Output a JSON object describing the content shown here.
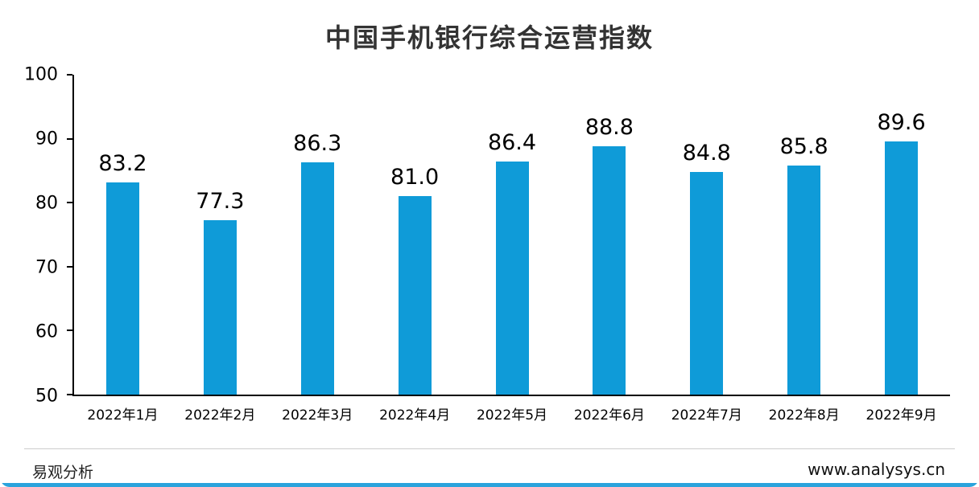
{
  "chart_data": {
    "type": "bar",
    "title": "中国手机银行综合运营指数",
    "categories": [
      "2022年1月",
      "2022年2月",
      "2022年3月",
      "2022年4月",
      "2022年5月",
      "2022年6月",
      "2022年7月",
      "2022年8月",
      "2022年9月"
    ],
    "values": [
      83.2,
      77.3,
      86.3,
      81.0,
      86.4,
      88.8,
      84.8,
      85.8,
      89.6
    ],
    "value_labels": [
      "83.2",
      "77.3",
      "86.3",
      "81.0",
      "86.4",
      "88.8",
      "84.8",
      "85.8",
      "89.6"
    ],
    "xlabel": "",
    "ylabel": "",
    "ylim": [
      50,
      100
    ],
    "yticks": [
      50,
      60,
      70,
      80,
      90,
      100
    ],
    "grid": false,
    "legend": false,
    "bar_color": "#0f9bd8"
  },
  "footer": {
    "brand": "易观分析",
    "website": "www.analysys.cn"
  },
  "colors": {
    "bar": "#0f9bd8",
    "accent_line": "#2aa3dc",
    "title": "#333333"
  }
}
